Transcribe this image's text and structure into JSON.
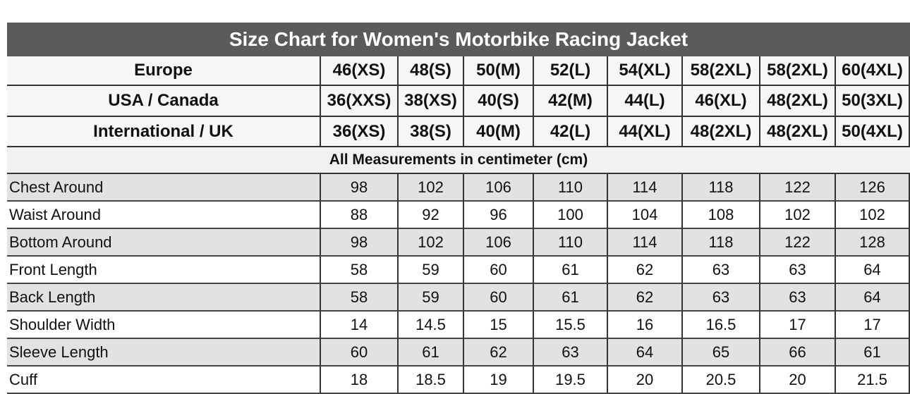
{
  "title": "Size Chart for Women's Motorbike Racing Jacket",
  "header_rows": [
    {
      "label": "Europe",
      "values": [
        "46(XS)",
        "48(S)",
        "50(M)",
        "52(L)",
        "54(XL)",
        "58(2XL)",
        "58(2XL)",
        "60(4XL)"
      ]
    },
    {
      "label": "USA / Canada",
      "values": [
        "36(XXS)",
        "38(XS)",
        "40(S)",
        "42(M)",
        "44(L)",
        "46(XL)",
        "48(2XL)",
        "50(3XL)"
      ]
    },
    {
      "label": "International / UK",
      "values": [
        "36(XS)",
        "38(S)",
        "40(M)",
        "42(L)",
        "44(XL)",
        "48(2XL)",
        "48(2XL)",
        "50(4XL)"
      ]
    }
  ],
  "note": "All Measurements in centimeter (cm)",
  "rows": [
    {
      "label": "Chest Around",
      "values": [
        98,
        102,
        106,
        110,
        114,
        118,
        122,
        126
      ]
    },
    {
      "label": "Waist Around",
      "values": [
        88,
        92,
        96,
        100,
        104,
        108,
        102,
        102
      ]
    },
    {
      "label": "Bottom Around",
      "values": [
        98,
        102,
        106,
        110,
        114,
        118,
        122,
        128
      ]
    },
    {
      "label": "Front Length",
      "values": [
        58,
        59,
        60,
        61,
        62,
        63,
        63,
        64
      ]
    },
    {
      "label": "Back Length",
      "values": [
        58,
        59,
        60,
        61,
        62,
        63,
        63,
        64
      ]
    },
    {
      "label": "Shoulder Width",
      "values": [
        14,
        14.5,
        15,
        15.5,
        16,
        16.5,
        17,
        17
      ]
    },
    {
      "label": "Sleeve Length",
      "values": [
        60,
        61,
        62,
        63,
        64,
        65,
        66,
        61
      ]
    },
    {
      "label": "Cuff",
      "values": [
        18,
        18.5,
        19,
        19.5,
        20,
        20.5,
        20,
        21.5
      ]
    }
  ]
}
